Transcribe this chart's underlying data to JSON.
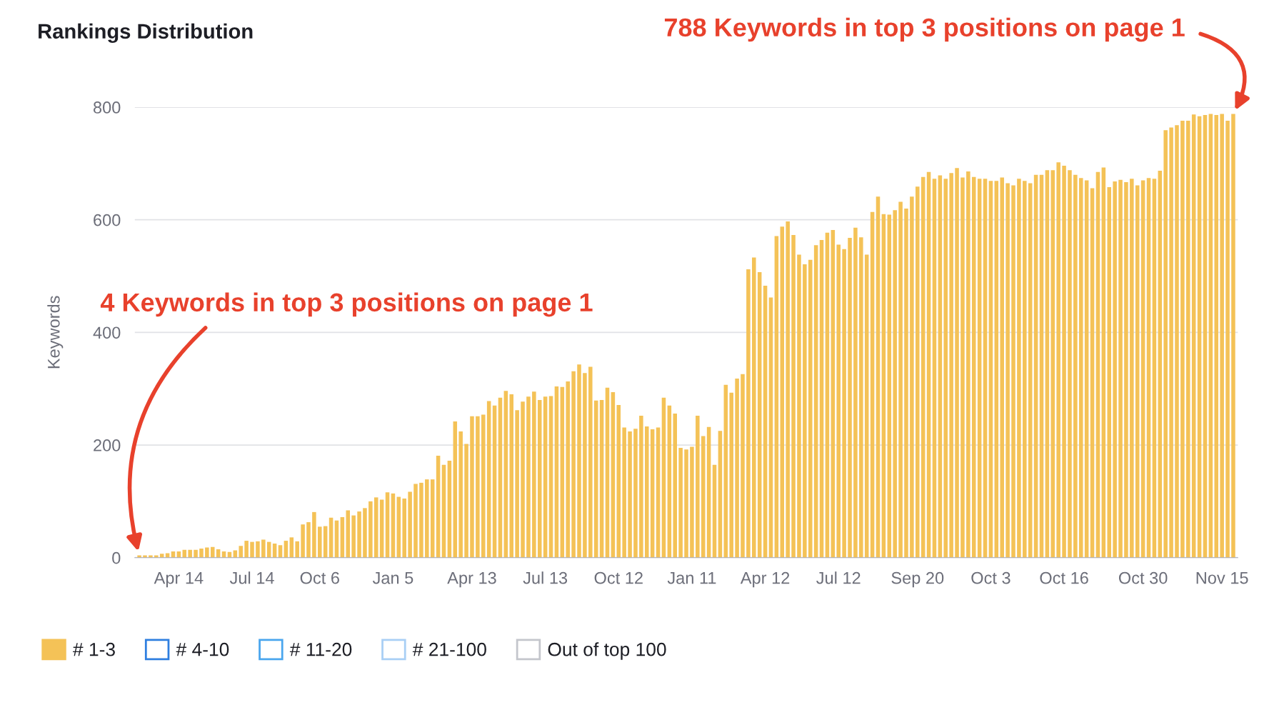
{
  "chart_data": {
    "type": "bar",
    "title": "Rankings Distribution",
    "ylabel": "Keywords",
    "categories": [
      null,
      null,
      null,
      null,
      null,
      null,
      null,
      "Apr 14",
      null,
      null,
      null,
      null,
      null,
      null,
      null,
      null,
      null,
      null,
      null,
      null,
      "Jul 14",
      null,
      null,
      null,
      null,
      null,
      null,
      null,
      null,
      null,
      null,
      null,
      "Oct 6",
      null,
      null,
      null,
      null,
      null,
      null,
      null,
      null,
      null,
      null,
      null,
      null,
      "Jan 5",
      null,
      null,
      null,
      null,
      null,
      null,
      null,
      null,
      null,
      null,
      null,
      null,
      null,
      "Apr 13",
      null,
      null,
      null,
      null,
      null,
      null,
      null,
      null,
      null,
      null,
      null,
      null,
      "Jul 13",
      null,
      null,
      null,
      null,
      null,
      null,
      null,
      null,
      null,
      null,
      null,
      null,
      "Oct 12",
      null,
      null,
      null,
      null,
      null,
      null,
      null,
      null,
      null,
      null,
      null,
      null,
      "Jan 11",
      null,
      null,
      null,
      null,
      null,
      null,
      null,
      null,
      null,
      null,
      null,
      null,
      "Apr 12",
      null,
      null,
      null,
      null,
      null,
      null,
      null,
      null,
      null,
      null,
      null,
      null,
      "Jul 12",
      null,
      null,
      null,
      null,
      null,
      null,
      null,
      null,
      null,
      null,
      null,
      null,
      null,
      "Sep 20",
      null,
      null,
      null,
      null,
      null,
      null,
      null,
      null,
      null,
      null,
      null,
      null,
      "Oct 3",
      null,
      null,
      null,
      null,
      null,
      null,
      null,
      null,
      null,
      null,
      null,
      null,
      "Oct 16",
      null,
      null,
      null,
      null,
      null,
      null,
      null,
      null,
      null,
      null,
      null,
      null,
      null,
      "Oct 30",
      null,
      null,
      null,
      null,
      null,
      null,
      null,
      null,
      null,
      null,
      null,
      null,
      null,
      "Nov 15",
      null,
      null
    ],
    "series": [
      {
        "name": "# 1-3",
        "color": "#f4c257",
        "values": [
          4,
          4,
          4,
          4,
          7,
          8,
          11,
          11,
          14,
          14,
          14,
          16,
          18,
          19,
          15,
          11,
          10,
          13,
          21,
          30,
          28,
          29,
          32,
          28,
          25,
          22,
          30,
          36,
          29,
          59,
          63,
          81,
          55,
          56,
          71,
          66,
          72,
          84,
          75,
          82,
          88,
          100,
          107,
          103,
          116,
          114,
          108,
          105,
          117,
          131,
          133,
          139,
          139,
          181,
          165,
          172,
          242,
          224,
          202,
          251,
          251,
          254,
          278,
          270,
          284,
          296,
          290,
          262,
          277,
          286,
          295,
          280,
          286,
          287,
          304,
          303,
          313,
          331,
          343,
          328,
          339,
          279,
          280,
          302,
          294,
          271,
          231,
          224,
          229,
          252,
          233,
          228,
          231,
          284,
          270,
          256,
          195,
          192,
          197,
          252,
          216,
          232,
          165,
          225,
          307,
          293,
          318,
          326,
          512,
          533,
          507,
          483,
          462,
          571,
          588,
          597,
          573,
          538,
          521,
          529,
          555,
          564,
          577,
          582,
          556,
          548,
          568,
          586,
          569,
          538,
          614,
          641,
          610,
          609,
          617,
          632,
          620,
          641,
          659,
          676,
          685,
          673,
          679,
          673,
          683,
          692,
          675,
          686,
          676,
          673,
          673,
          669,
          669,
          675,
          665,
          661,
          673,
          669,
          665,
          680,
          680,
          688,
          688,
          702,
          696,
          688,
          680,
          674,
          670,
          656,
          685,
          693,
          658,
          668,
          671,
          667,
          673,
          661,
          670,
          674,
          673,
          687,
          759,
          764,
          768,
          776,
          776,
          787,
          784,
          786,
          788,
          786,
          788,
          776,
          788
        ]
      },
      {
        "name": "# 4-10",
        "color": "#2f7fe0",
        "values": [
          null,
          null,
          null,
          null,
          null,
          null,
          null,
          null,
          null,
          null,
          null,
          null,
          null,
          null,
          null,
          null,
          null,
          null,
          null,
          null,
          null,
          null,
          null,
          null,
          null,
          null,
          null,
          null,
          null,
          null,
          null,
          null,
          null,
          null,
          null,
          null,
          null,
          null,
          null,
          null,
          null,
          null,
          null,
          null,
          null,
          null,
          null,
          null,
          null,
          null,
          null,
          null,
          null,
          null,
          null,
          null,
          null,
          null,
          null,
          null,
          null,
          null,
          null,
          null,
          null,
          null,
          null,
          null,
          null,
          null,
          null,
          null,
          null,
          null,
          null,
          null,
          null,
          null,
          null,
          null,
          null,
          null,
          null,
          null,
          null,
          null,
          null,
          null,
          null,
          null,
          null,
          null,
          null,
          null,
          null,
          null,
          null,
          null,
          null,
          null,
          null,
          null,
          null,
          null,
          null,
          null,
          null,
          null,
          null,
          null,
          null,
          null,
          null,
          null,
          null,
          null,
          null,
          null,
          null,
          null,
          null,
          null,
          null,
          null,
          null,
          null,
          null,
          null,
          null,
          null,
          null,
          null,
          null,
          null,
          null,
          null,
          null,
          null,
          null,
          null,
          null,
          null,
          null,
          null,
          null,
          null,
          null,
          null,
          null,
          null,
          null,
          null,
          null,
          null,
          null,
          null,
          null,
          null,
          null,
          null,
          null,
          null,
          null,
          null,
          null,
          null,
          null,
          null,
          null,
          null,
          null,
          null,
          null,
          null,
          null,
          null,
          null,
          null,
          null,
          null,
          null,
          null,
          null,
          null,
          null,
          null,
          null,
          null,
          null,
          null,
          null,
          null,
          null,
          null,
          null
        ]
      },
      {
        "name": "# 11-20",
        "color": "#4aa6ee",
        "values": [
          null,
          null,
          null,
          null,
          null,
          null,
          null,
          null,
          null,
          null,
          null,
          null,
          null,
          null,
          null,
          null,
          null,
          null,
          null,
          null,
          null,
          null,
          null,
          null,
          null,
          null,
          null,
          null,
          null,
          null,
          null,
          null,
          null,
          null,
          null,
          null,
          null,
          null,
          null,
          null,
          null,
          null,
          null,
          null,
          null,
          null,
          null,
          null,
          null,
          null,
          null,
          null,
          null,
          null,
          null,
          null,
          null,
          null,
          null,
          null,
          null,
          null,
          null,
          null,
          null,
          null,
          null,
          null,
          null,
          null,
          null,
          null,
          null,
          null,
          null,
          null,
          null,
          null,
          null,
          null,
          null,
          null,
          null,
          null,
          null,
          null,
          null,
          null,
          null,
          null,
          null,
          null,
          null,
          null,
          null,
          null,
          null,
          null,
          null,
          null,
          null,
          null,
          null,
          null,
          null,
          null,
          null,
          null,
          null,
          null,
          null,
          null,
          null,
          null,
          null,
          null,
          null,
          null,
          null,
          null,
          null,
          null,
          null,
          null,
          null,
          null,
          null,
          null,
          null,
          null,
          null,
          null,
          null,
          null,
          null,
          null,
          null,
          null,
          null,
          null,
          null,
          null,
          null,
          null,
          null,
          null,
          null,
          null,
          null,
          null,
          null,
          null,
          null,
          null,
          null,
          null,
          null,
          null,
          null,
          null,
          null,
          null,
          null,
          null,
          null,
          null,
          null,
          null,
          null,
          null,
          null,
          null,
          null,
          null,
          null,
          null,
          null,
          null,
          null,
          null,
          null,
          null,
          null,
          null,
          null,
          null,
          null,
          null,
          null,
          null,
          null,
          null,
          null,
          null,
          null
        ]
      },
      {
        "name": "# 21-100",
        "color": "#a9cff5",
        "values": [
          null,
          null,
          null,
          null,
          null,
          null,
          null,
          null,
          null,
          null,
          null,
          null,
          null,
          null,
          null,
          null,
          null,
          null,
          null,
          null,
          null,
          null,
          null,
          null,
          null,
          null,
          null,
          null,
          null,
          null,
          null,
          null,
          null,
          null,
          null,
          null,
          null,
          null,
          null,
          null,
          null,
          null,
          null,
          null,
          null,
          null,
          null,
          null,
          null,
          null,
          null,
          null,
          null,
          null,
          null,
          null,
          null,
          null,
          null,
          null,
          null,
          null,
          null,
          null,
          null,
          null,
          null,
          null,
          null,
          null,
          null,
          null,
          null,
          null,
          null,
          null,
          null,
          null,
          null,
          null,
          null,
          null,
          null,
          null,
          null,
          null,
          null,
          null,
          null,
          null,
          null,
          null,
          null,
          null,
          null,
          null,
          null,
          null,
          null,
          null,
          null,
          null,
          null,
          null,
          null,
          null,
          null,
          null,
          null,
          null,
          null,
          null,
          null,
          null,
          null,
          null,
          null,
          null,
          null,
          null,
          null,
          null,
          null,
          null,
          null,
          null,
          null,
          null,
          null,
          null,
          null,
          null,
          null,
          null,
          null,
          null,
          null,
          null,
          null,
          null,
          null,
          null,
          null,
          null,
          null,
          null,
          null,
          null,
          null,
          null,
          null,
          null,
          null,
          null,
          null,
          null,
          null,
          null,
          null,
          null,
          null,
          null,
          null,
          null,
          null,
          null,
          null,
          null,
          null,
          null,
          null,
          null,
          null,
          null,
          null,
          null,
          null,
          null,
          null,
          null,
          null,
          null,
          null,
          null,
          null,
          null,
          null,
          null,
          null,
          null,
          null,
          null,
          null,
          null,
          null
        ]
      },
      {
        "name": "Out of top 100",
        "color": "#c4c6cc",
        "values": [
          null,
          null,
          null,
          null,
          null,
          null,
          null,
          null,
          null,
          null,
          null,
          null,
          null,
          null,
          null,
          null,
          null,
          null,
          null,
          null,
          null,
          null,
          null,
          null,
          null,
          null,
          null,
          null,
          null,
          null,
          null,
          null,
          null,
          null,
          null,
          null,
          null,
          null,
          null,
          null,
          null,
          null,
          null,
          null,
          null,
          null,
          null,
          null,
          null,
          null,
          null,
          null,
          null,
          null,
          null,
          null,
          null,
          null,
          null,
          null,
          null,
          null,
          null,
          null,
          null,
          null,
          null,
          null,
          null,
          null,
          null,
          null,
          null,
          null,
          null,
          null,
          null,
          null,
          null,
          null,
          null,
          null,
          null,
          null,
          null,
          null,
          null,
          null,
          null,
          null,
          null,
          null,
          null,
          null,
          null,
          null,
          null,
          null,
          null,
          null,
          null,
          null,
          null,
          null,
          null,
          null,
          null,
          null,
          null,
          null,
          null,
          null,
          null,
          null,
          null,
          null,
          null,
          null,
          null,
          null,
          null,
          null,
          null,
          null,
          null,
          null,
          null,
          null,
          null,
          null,
          null,
          null,
          null,
          null,
          null,
          null,
          null,
          null,
          null,
          null,
          null,
          null,
          null,
          null,
          null,
          null,
          null,
          null,
          null,
          null,
          null,
          null,
          null,
          null,
          null,
          null,
          null,
          null,
          null,
          null,
          null,
          null,
          null,
          null,
          null,
          null,
          null,
          null,
          null,
          null,
          null,
          null,
          null,
          null,
          null,
          null,
          null,
          null,
          null,
          null,
          null,
          null,
          null,
          null,
          null,
          null,
          null,
          null,
          null,
          null,
          null,
          null,
          null,
          null,
          null
        ]
      }
    ],
    "ylim": [
      0,
      800
    ],
    "yticks": [
      0,
      200,
      400,
      600,
      800
    ],
    "grid": "y",
    "legend": "bottom left",
    "annotations": [
      "4 Keywords in top 3 positions on page 1",
      "788 Keywords in top 3 positions on page 1"
    ]
  }
}
